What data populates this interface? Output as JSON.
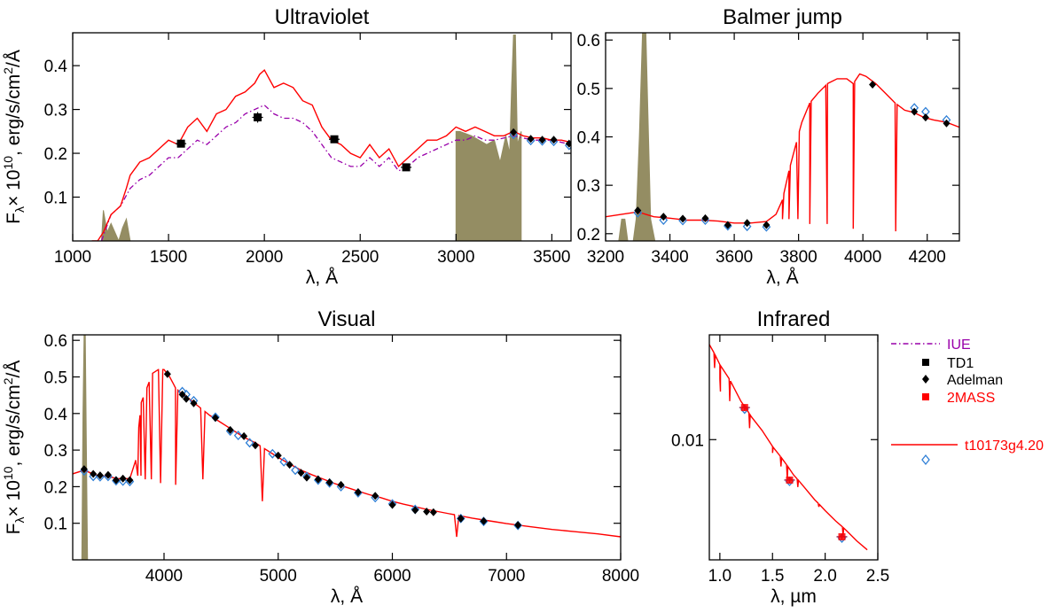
{
  "figure": {
    "legend": [
      {
        "label": "IUE",
        "color": "#9900aa",
        "kind": "dashdot-line"
      },
      {
        "label": "TD1",
        "color": "#000000",
        "kind": "square"
      },
      {
        "label": "Adelman",
        "color": "#000000",
        "kind": "diamond"
      },
      {
        "label": "2MASS",
        "color": "#ff0000",
        "kind": "red-square"
      },
      {
        "label": "t10173g4.20",
        "color": "#ff0000",
        "kind": "line"
      }
    ],
    "colors": {
      "model": "#ff0000",
      "iue": "#9900aa",
      "fill": "#948d63",
      "synthetic": "#2f7fd6",
      "obs": "#000000"
    }
  },
  "chart_data": [
    {
      "id": "uv",
      "type": "line",
      "title": "Ultraviolet",
      "xlabel": "λ, Å",
      "ylabel": "F_λ× 10^10, erg/s/cm^2/Å",
      "xlim": [
        1000,
        3600
      ],
      "ylim": [
        0.0,
        0.475
      ],
      "xscale": "linear",
      "yscale": "linear",
      "xticks": [
        1000,
        1500,
        2000,
        2500,
        3000,
        3500
      ],
      "yticks": [
        0.1,
        0.2,
        0.3,
        0.4
      ],
      "model": {
        "x": [
          1100,
          1130,
          1160,
          1200,
          1250,
          1280,
          1300,
          1350,
          1400,
          1450,
          1500,
          1550,
          1600,
          1650,
          1700,
          1750,
          1800,
          1850,
          1900,
          1950,
          1975,
          2000,
          2050,
          2100,
          2150,
          2200,
          2250,
          2300,
          2350,
          2400,
          2450,
          2500,
          2550,
          2600,
          2650,
          2700,
          2750,
          2800,
          2850,
          2900,
          2950,
          3000,
          3050,
          3100,
          3150,
          3200,
          3250,
          3300,
          3350,
          3400,
          3450,
          3500,
          3550,
          3600
        ],
        "y": [
          0.0,
          0.0,
          0.02,
          0.06,
          0.08,
          0.12,
          0.15,
          0.18,
          0.19,
          0.21,
          0.23,
          0.22,
          0.26,
          0.28,
          0.25,
          0.29,
          0.3,
          0.33,
          0.34,
          0.36,
          0.38,
          0.39,
          0.35,
          0.36,
          0.35,
          0.32,
          0.31,
          0.26,
          0.23,
          0.22,
          0.2,
          0.19,
          0.22,
          0.19,
          0.21,
          0.17,
          0.19,
          0.21,
          0.23,
          0.23,
          0.24,
          0.26,
          0.25,
          0.26,
          0.25,
          0.24,
          0.24,
          0.25,
          0.24,
          0.235,
          0.235,
          0.23,
          0.23,
          0.225
        ]
      },
      "iue": {
        "x": [
          1150,
          1200,
          1250,
          1300,
          1350,
          1400,
          1450,
          1500,
          1550,
          1600,
          1650,
          1700,
          1750,
          1800,
          1850,
          1900,
          1950,
          2000,
          2050,
          2100,
          2150,
          2200,
          2250,
          2300,
          2350,
          2400,
          2450,
          2500,
          2550,
          2600,
          2650,
          2700,
          2750,
          2800,
          2850,
          2900,
          2950,
          3000,
          3050,
          3100,
          3150,
          3200,
          3250,
          3300,
          3350,
          3400,
          3450,
          3500,
          3550,
          3600
        ],
        "y": [
          0.0,
          0.06,
          0.08,
          0.12,
          0.14,
          0.15,
          0.17,
          0.19,
          0.19,
          0.21,
          0.23,
          0.22,
          0.24,
          0.26,
          0.27,
          0.29,
          0.3,
          0.31,
          0.29,
          0.28,
          0.28,
          0.27,
          0.25,
          0.22,
          0.19,
          0.18,
          0.17,
          0.17,
          0.19,
          0.17,
          0.19,
          0.16,
          0.17,
          0.19,
          0.2,
          0.21,
          0.22,
          0.23,
          0.23,
          0.24,
          0.23,
          0.23,
          0.235,
          0.24,
          0.235,
          0.23,
          0.23,
          0.23,
          0.225,
          0.22
        ]
      },
      "fill": [
        {
          "x": [
            1150,
            1160,
            1180,
            1200,
            1240,
            1260,
            1280,
            1300
          ],
          "y": [
            0.0,
            0.07,
            0.02,
            0.04,
            0.0,
            0.03,
            0.05,
            0.0
          ]
        },
        {
          "x": [
            3000,
            3020,
            3080,
            3120,
            3160,
            3200,
            3230,
            3260,
            3280,
            3290,
            3300,
            3310,
            3320,
            3340
          ],
          "y": [
            0.25,
            0.25,
            0.24,
            0.23,
            0.22,
            0.23,
            0.18,
            0.24,
            0.2,
            0.35,
            0.47,
            0.47,
            0.22,
            0.25
          ]
        }
      ],
      "td1": {
        "x": [
          1565,
          1965,
          2365,
          2740
        ],
        "y": [
          0.222,
          0.282,
          0.232,
          0.168
        ],
        "err": [
          0.008,
          0.012,
          0.007,
          0.006
        ]
      },
      "adelman": {
        "x": [
          3300,
          3390,
          3450,
          3510,
          3590
        ],
        "y": [
          0.248,
          0.233,
          0.231,
          0.231,
          0.222
        ]
      },
      "synthetic": {
        "x": [
          3300,
          3390,
          3450,
          3510,
          3590
        ],
        "y": [
          0.243,
          0.229,
          0.228,
          0.227,
          0.218
        ]
      }
    },
    {
      "id": "balmer",
      "type": "line",
      "title": "Balmer jump",
      "xlabel": "λ, Å",
      "ylabel": "",
      "xlim": [
        3200,
        4300
      ],
      "ylim": [
        0.185,
        0.615
      ],
      "xscale": "linear",
      "yscale": "linear",
      "xticks": [
        3200,
        3400,
        3600,
        3800,
        4000,
        4200
      ],
      "yticks": [
        0.2,
        0.3,
        0.4,
        0.5,
        0.6
      ],
      "model": {
        "x": [
          3200,
          3250,
          3300,
          3350,
          3400,
          3450,
          3500,
          3550,
          3600,
          3650,
          3700,
          3730,
          3750,
          3770,
          3790,
          3810,
          3835,
          3860,
          3890,
          3920,
          3950,
          3970,
          3990,
          4010,
          4040,
          4070,
          4100,
          4130,
          4160,
          4190,
          4220,
          4260,
          4300
        ],
        "y": [
          0.235,
          0.24,
          0.245,
          0.235,
          0.232,
          0.228,
          0.228,
          0.226,
          0.222,
          0.222,
          0.225,
          0.24,
          0.27,
          0.33,
          0.38,
          0.43,
          0.47,
          0.49,
          0.51,
          0.52,
          0.52,
          0.51,
          0.53,
          0.525,
          0.51,
          0.49,
          0.47,
          0.455,
          0.45,
          0.44,
          0.435,
          0.43,
          0.42
        ]
      },
      "lines": [
        {
          "x": 3750,
          "depth": 0.23
        },
        {
          "x": 3770,
          "depth": 0.23
        },
        {
          "x": 3798,
          "depth": 0.23
        },
        {
          "x": 3835,
          "depth": 0.22
        },
        {
          "x": 3889,
          "depth": 0.22
        },
        {
          "x": 3970,
          "depth": 0.21
        },
        {
          "x": 4102,
          "depth": 0.205
        }
      ],
      "fill": [
        {
          "x": [
            3240,
            3250,
            3260,
            3270
          ],
          "y": [
            0.18,
            0.23,
            0.23,
            0.18
          ]
        },
        {
          "x": [
            3285,
            3295,
            3305,
            3315,
            3325,
            3340,
            3355
          ],
          "y": [
            0.18,
            0.23,
            0.4,
            0.62,
            0.62,
            0.23,
            0.18
          ]
        }
      ],
      "adelman": {
        "x": [
          3300,
          3380,
          3440,
          3510,
          3580,
          3640,
          3700,
          4030,
          4160,
          4195,
          4260
        ],
        "y": [
          0.248,
          0.235,
          0.231,
          0.232,
          0.218,
          0.222,
          0.218,
          0.508,
          0.452,
          0.44,
          0.428
        ]
      },
      "synthetic": {
        "x": [
          3300,
          3380,
          3440,
          3510,
          3580,
          3640,
          3700,
          4160,
          4195,
          4260
        ],
        "y": [
          0.243,
          0.228,
          0.227,
          0.228,
          0.216,
          0.215,
          0.214,
          0.46,
          0.452,
          0.435
        ]
      }
    },
    {
      "id": "visual",
      "type": "line",
      "title": "Visual",
      "xlabel": "λ, Å",
      "ylabel": "F_λ× 10^10, erg/s/cm^2/Å",
      "xlim": [
        3200,
        8000
      ],
      "ylim": [
        0.0,
        0.615
      ],
      "xscale": "linear",
      "yscale": "linear",
      "xticks": [
        4000,
        5000,
        6000,
        7000,
        8000
      ],
      "yticks": [
        0.1,
        0.2,
        0.3,
        0.4,
        0.5,
        0.6
      ],
      "model": {
        "x": [
          3200,
          3300,
          3400,
          3500,
          3600,
          3700,
          3750,
          3800,
          3850,
          3900,
          3950,
          4000,
          4050,
          4100,
          4150,
          4200,
          4300,
          4400,
          4500,
          4600,
          4700,
          4800,
          4900,
          5000,
          5100,
          5200,
          5300,
          5400,
          5500,
          5600,
          5700,
          5800,
          5900,
          6000,
          6100,
          6200,
          6300,
          6400,
          6500,
          6600,
          6700,
          6800,
          6900,
          7000,
          7200,
          7400,
          7600,
          7800,
          8000
        ],
        "y": [
          0.235,
          0.245,
          0.232,
          0.228,
          0.222,
          0.222,
          0.27,
          0.43,
          0.47,
          0.51,
          0.52,
          0.52,
          0.5,
          0.47,
          0.455,
          0.445,
          0.42,
          0.395,
          0.375,
          0.355,
          0.335,
          0.32,
          0.3,
          0.28,
          0.262,
          0.245,
          0.232,
          0.22,
          0.208,
          0.198,
          0.188,
          0.178,
          0.17,
          0.16,
          0.152,
          0.145,
          0.138,
          0.132,
          0.126,
          0.12,
          0.114,
          0.109,
          0.104,
          0.099,
          0.091,
          0.083,
          0.077,
          0.071,
          0.063
        ]
      },
      "lines": [
        {
          "x": 3770,
          "depth": 0.23
        },
        {
          "x": 3798,
          "depth": 0.23
        },
        {
          "x": 3835,
          "depth": 0.22
        },
        {
          "x": 3889,
          "depth": 0.22
        },
        {
          "x": 3970,
          "depth": 0.21
        },
        {
          "x": 4102,
          "depth": 0.205
        },
        {
          "x": 4340,
          "depth": 0.22
        },
        {
          "x": 4861,
          "depth": 0.16
        },
        {
          "x": 6563,
          "depth": 0.063
        }
      ],
      "fill": [
        {
          "x": [
            3270,
            3280,
            3290,
            3300,
            3310,
            3320,
            3330,
            3340
          ],
          "y": [
            0.0,
            0.0,
            0.4,
            0.62,
            0.62,
            0.3,
            0.0,
            0.0
          ]
        }
      ],
      "adelman": {
        "x": [
          3300,
          3380,
          3440,
          3510,
          3580,
          3640,
          3700,
          4030,
          4160,
          4195,
          4260,
          4450,
          4580,
          4700,
          4800,
          5000,
          5100,
          5200,
          5250,
          5350,
          5450,
          5550,
          5700,
          5850,
          6000,
          6200,
          6300,
          6360,
          6600,
          6800,
          7100
        ],
        "y": [
          0.248,
          0.235,
          0.231,
          0.232,
          0.218,
          0.222,
          0.218,
          0.508,
          0.452,
          0.44,
          0.428,
          0.388,
          0.355,
          0.338,
          0.313,
          0.285,
          0.26,
          0.238,
          0.225,
          0.22,
          0.212,
          0.205,
          0.185,
          0.175,
          0.15,
          0.136,
          0.132,
          0.13,
          0.113,
          0.106,
          0.095
        ]
      },
      "synthetic": {
        "x": [
          3300,
          3380,
          3440,
          3510,
          3580,
          3640,
          3700,
          4160,
          4195,
          4260,
          4450,
          4580,
          4650,
          4750,
          4950,
          5050,
          5150,
          5250,
          5350,
          5450,
          5550,
          5700,
          5850,
          6000,
          6200,
          6600,
          6800,
          7100
        ],
        "y": [
          0.243,
          0.228,
          0.227,
          0.228,
          0.216,
          0.215,
          0.214,
          0.46,
          0.452,
          0.435,
          0.39,
          0.352,
          0.34,
          0.32,
          0.29,
          0.268,
          0.245,
          0.228,
          0.218,
          0.21,
          0.2,
          0.183,
          0.17,
          0.153,
          0.138,
          0.113,
          0.105,
          0.094
        ]
      }
    },
    {
      "id": "infrared",
      "type": "line",
      "title": "Infrared",
      "xlabel": "λ, µm",
      "ylabel": "",
      "xlim": [
        0.9,
        2.5
      ],
      "ylim": [
        0.0023,
        0.036
      ],
      "xscale": "linear",
      "yscale": "log",
      "xticks": [
        1.0,
        1.5,
        2.0,
        2.5
      ],
      "xticklabels": [
        "1.0",
        "1.5",
        "2.0",
        "2.5"
      ],
      "yticks": [
        0.01
      ],
      "yticklabels": [
        "0.01"
      ],
      "model": {
        "x": [
          0.9,
          1.0,
          1.1,
          1.2,
          1.3,
          1.4,
          1.5,
          1.6,
          1.7,
          1.8,
          1.9,
          2.0,
          2.1,
          2.2,
          2.3,
          2.4
        ],
        "y": [
          0.032,
          0.025,
          0.0205,
          0.016,
          0.0132,
          0.0112,
          0.0092,
          0.0078,
          0.0065,
          0.0056,
          0.0048,
          0.0042,
          0.0037,
          0.0033,
          0.0029,
          0.0026
        ]
      },
      "lines": [
        {
          "x": 0.95,
          "depth": 0.024
        },
        {
          "x": 1.0,
          "depth": 0.021
        },
        {
          "x": 1.005,
          "depth": 0.018
        },
        {
          "x": 1.094,
          "depth": 0.016
        },
        {
          "x": 1.282,
          "depth": 0.0115
        },
        {
          "x": 1.5,
          "depth": 0.0085
        },
        {
          "x": 1.58,
          "depth": 0.0072
        },
        {
          "x": 1.64,
          "depth": 0.0062
        },
        {
          "x": 1.74,
          "depth": 0.0056
        },
        {
          "x": 1.94,
          "depth": 0.0044
        },
        {
          "x": 2.17,
          "depth": 0.0031
        }
      ],
      "twomass": {
        "x": [
          1.235,
          1.662,
          2.159
        ],
        "y": [
          0.0148,
          0.0061,
          0.00305
        ],
        "err": [
          0.0006,
          0.00025,
          0.00012
        ]
      },
      "synthetic": {
        "x": [
          1.235,
          1.662,
          2.159
        ],
        "y": [
          0.0145,
          0.006,
          0.003
        ]
      }
    }
  ]
}
